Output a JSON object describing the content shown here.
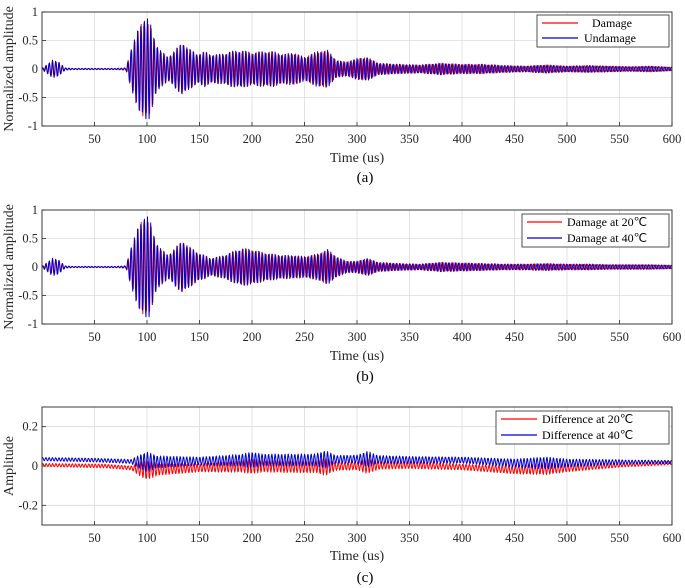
{
  "chart_data": [
    {
      "type": "line",
      "caption": "(a)",
      "xlabel": "Time (us)",
      "ylabel": "Normalized amplitude",
      "xlim": [
        0,
        600
      ],
      "ylim": [
        -1,
        1
      ],
      "xticks": [
        50,
        100,
        150,
        200,
        250,
        300,
        350,
        400,
        450,
        500,
        550,
        600
      ],
      "yticks": [
        -1,
        -0.5,
        0,
        0.5,
        1
      ],
      "ytick_labels": [
        "-1",
        "-0.5",
        "0",
        "0.5",
        "1"
      ],
      "grid": true,
      "legend_position": "top-right",
      "series": [
        {
          "name": "Damage",
          "color": "#ff0000"
        },
        {
          "name": "Undamage",
          "color": "#0000cc"
        }
      ],
      "envelope": [
        [
          0,
          0.01
        ],
        [
          5,
          0.08
        ],
        [
          10,
          0.15
        ],
        [
          16,
          0.12
        ],
        [
          22,
          0.02
        ],
        [
          30,
          0.01
        ],
        [
          70,
          0.01
        ],
        [
          80,
          0.02
        ],
        [
          85,
          0.35
        ],
        [
          92,
          0.7
        ],
        [
          98,
          0.9
        ],
        [
          102,
          0.85
        ],
        [
          108,
          0.45
        ],
        [
          114,
          0.3
        ],
        [
          120,
          0.2
        ],
        [
          128,
          0.35
        ],
        [
          134,
          0.45
        ],
        [
          140,
          0.35
        ],
        [
          148,
          0.25
        ],
        [
          155,
          0.3
        ],
        [
          160,
          0.25
        ],
        [
          170,
          0.25
        ],
        [
          180,
          0.3
        ],
        [
          190,
          0.32
        ],
        [
          200,
          0.28
        ],
        [
          210,
          0.3
        ],
        [
          220,
          0.3
        ],
        [
          230,
          0.25
        ],
        [
          240,
          0.28
        ],
        [
          250,
          0.2
        ],
        [
          262,
          0.3
        ],
        [
          272,
          0.32
        ],
        [
          280,
          0.15
        ],
        [
          290,
          0.12
        ],
        [
          300,
          0.18
        ],
        [
          310,
          0.2
        ],
        [
          320,
          0.1
        ],
        [
          340,
          0.08
        ],
        [
          360,
          0.07
        ],
        [
          380,
          0.1
        ],
        [
          400,
          0.08
        ],
        [
          420,
          0.08
        ],
        [
          440,
          0.06
        ],
        [
          460,
          0.05
        ],
        [
          480,
          0.07
        ],
        [
          500,
          0.05
        ],
        [
          520,
          0.06
        ],
        [
          540,
          0.05
        ],
        [
          560,
          0.04
        ],
        [
          580,
          0.05
        ],
        [
          600,
          0.03
        ]
      ]
    },
    {
      "type": "line",
      "caption": "(b)",
      "xlabel": "Time (us)",
      "ylabel": "Normalized amplitude",
      "xlim": [
        0,
        600
      ],
      "ylim": [
        -1,
        1
      ],
      "xticks": [
        50,
        100,
        150,
        200,
        250,
        300,
        350,
        400,
        450,
        500,
        550,
        600
      ],
      "yticks": [
        -1,
        -0.5,
        0,
        0.5,
        1
      ],
      "ytick_labels": [
        "-1",
        "-0.5",
        "0",
        "0.5",
        "1"
      ],
      "grid": true,
      "legend_position": "top-right",
      "series": [
        {
          "name": "Damage at 20℃",
          "color": "#ff0000"
        },
        {
          "name": "Damage at 40℃",
          "color": "#0000cc"
        }
      ],
      "envelope": [
        [
          0,
          0.01
        ],
        [
          5,
          0.08
        ],
        [
          10,
          0.15
        ],
        [
          16,
          0.12
        ],
        [
          22,
          0.02
        ],
        [
          30,
          0.01
        ],
        [
          70,
          0.01
        ],
        [
          80,
          0.02
        ],
        [
          85,
          0.35
        ],
        [
          92,
          0.7
        ],
        [
          98,
          0.9
        ],
        [
          102,
          0.85
        ],
        [
          108,
          0.45
        ],
        [
          114,
          0.3
        ],
        [
          120,
          0.2
        ],
        [
          128,
          0.35
        ],
        [
          134,
          0.45
        ],
        [
          140,
          0.35
        ],
        [
          148,
          0.25
        ],
        [
          155,
          0.2
        ],
        [
          160,
          0.15
        ],
        [
          170,
          0.18
        ],
        [
          180,
          0.25
        ],
        [
          190,
          0.32
        ],
        [
          200,
          0.3
        ],
        [
          210,
          0.25
        ],
        [
          220,
          0.22
        ],
        [
          230,
          0.2
        ],
        [
          240,
          0.2
        ],
        [
          250,
          0.18
        ],
        [
          262,
          0.22
        ],
        [
          272,
          0.3
        ],
        [
          280,
          0.18
        ],
        [
          290,
          0.1
        ],
        [
          300,
          0.1
        ],
        [
          310,
          0.15
        ],
        [
          320,
          0.08
        ],
        [
          340,
          0.06
        ],
        [
          360,
          0.05
        ],
        [
          380,
          0.08
        ],
        [
          400,
          0.07
        ],
        [
          420,
          0.06
        ],
        [
          440,
          0.05
        ],
        [
          460,
          0.05
        ],
        [
          480,
          0.06
        ],
        [
          500,
          0.05
        ],
        [
          520,
          0.05
        ],
        [
          540,
          0.04
        ],
        [
          560,
          0.04
        ],
        [
          580,
          0.04
        ],
        [
          600,
          0.03
        ]
      ]
    },
    {
      "type": "line",
      "caption": "(c)",
      "xlabel": "Time (us)",
      "ylabel": "Amplitude",
      "xlim": [
        0,
        600
      ],
      "ylim": [
        -0.3,
        0.3
      ],
      "xticks": [
        50,
        100,
        150,
        200,
        250,
        300,
        350,
        400,
        450,
        500,
        550,
        600
      ],
      "yticks": [
        -0.2,
        0,
        0.2
      ],
      "ytick_labels": [
        "-0.2",
        "0",
        "0.2"
      ],
      "grid": true,
      "legend_position": "top-right",
      "series": [
        {
          "name": "Difference at 20℃",
          "color": "#ff0000",
          "baseline": [
            [
              0,
              0.005
            ],
            [
              60,
              0.0
            ],
            [
              85,
              -0.01
            ],
            [
              100,
              -0.02
            ],
            [
              150,
              -0.01
            ],
            [
              200,
              0.0
            ],
            [
              250,
              -0.005
            ],
            [
              300,
              0.0
            ],
            [
              350,
              0.005
            ],
            [
              400,
              -0.005
            ],
            [
              450,
              -0.02
            ],
            [
              500,
              -0.01
            ],
            [
              550,
              0.005
            ],
            [
              600,
              0.015
            ]
          ]
        },
        {
          "name": "Difference at 40℃",
          "color": "#0000cc",
          "baseline": [
            [
              0,
              0.035
            ],
            [
              50,
              0.03
            ],
            [
              100,
              0.02
            ],
            [
              150,
              0.025
            ],
            [
              200,
              0.03
            ],
            [
              250,
              0.03
            ],
            [
              300,
              0.035
            ],
            [
              350,
              0.03
            ],
            [
              400,
              0.03
            ],
            [
              450,
              0.015
            ],
            [
              500,
              0.015
            ],
            [
              550,
              0.02
            ],
            [
              600,
              0.02
            ]
          ]
        }
      ],
      "envelope": [
        [
          0,
          0.008
        ],
        [
          85,
          0.01
        ],
        [
          95,
          0.04
        ],
        [
          100,
          0.05
        ],
        [
          110,
          0.03
        ],
        [
          150,
          0.02
        ],
        [
          190,
          0.03
        ],
        [
          200,
          0.04
        ],
        [
          210,
          0.03
        ],
        [
          260,
          0.03
        ],
        [
          270,
          0.045
        ],
        [
          280,
          0.02
        ],
        [
          300,
          0.02
        ],
        [
          310,
          0.04
        ],
        [
          320,
          0.02
        ],
        [
          400,
          0.015
        ],
        [
          450,
          0.02
        ],
        [
          480,
          0.03
        ],
        [
          500,
          0.02
        ],
        [
          560,
          0.01
        ],
        [
          600,
          0.008
        ]
      ]
    }
  ]
}
